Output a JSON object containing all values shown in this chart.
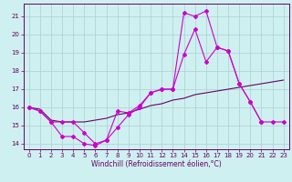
{
  "xlabel": "Windchill (Refroidissement éolien,°C)",
  "background_color": "#cff0f0",
  "grid_color": "#aacfcf",
  "line_color1": "#cc00cc",
  "line_color2": "#660066",
  "xlim": [
    -0.5,
    23.5
  ],
  "ylim": [
    13.7,
    21.7
  ],
  "yticks": [
    14,
    15,
    16,
    17,
    18,
    19,
    20,
    21
  ],
  "xticks": [
    0,
    1,
    2,
    3,
    4,
    5,
    6,
    7,
    8,
    9,
    10,
    11,
    12,
    13,
    14,
    15,
    16,
    17,
    18,
    19,
    20,
    21,
    22,
    23
  ],
  "line1_x": [
    0,
    1,
    2,
    3,
    4,
    5,
    6,
    7,
    8,
    9,
    10,
    11,
    12,
    13,
    14,
    15,
    16,
    17,
    18,
    19,
    20,
    21
  ],
  "line1_y": [
    16.0,
    15.8,
    15.2,
    14.4,
    14.4,
    14.0,
    13.9,
    14.2,
    15.8,
    15.7,
    16.1,
    16.8,
    17.0,
    17.0,
    18.9,
    20.3,
    18.5,
    19.3,
    19.1,
    17.3,
    16.3,
    15.2
  ],
  "line2_x": [
    0,
    1,
    2,
    3,
    4,
    5,
    6,
    7,
    8,
    9,
    10,
    11,
    12,
    13,
    14,
    15,
    16,
    17,
    18,
    19,
    20,
    21,
    22,
    23
  ],
  "line2_y": [
    16.0,
    15.9,
    15.3,
    15.2,
    15.2,
    15.2,
    15.3,
    15.4,
    15.6,
    15.7,
    15.9,
    16.1,
    16.2,
    16.4,
    16.5,
    16.7,
    16.8,
    16.9,
    17.0,
    17.1,
    17.2,
    17.3,
    17.4,
    17.5
  ],
  "line3_x": [
    0,
    1,
    2,
    3,
    4,
    5,
    6,
    7,
    8,
    9,
    10,
    11,
    12,
    13,
    14,
    15,
    16,
    17,
    18,
    19,
    20,
    21,
    22,
    23
  ],
  "line3_y": [
    16.0,
    15.8,
    15.2,
    15.2,
    15.2,
    14.6,
    14.0,
    14.2,
    14.9,
    15.6,
    16.0,
    16.8,
    17.0,
    17.0,
    21.2,
    21.0,
    21.3,
    19.3,
    19.1,
    17.3,
    16.3,
    15.2,
    15.2,
    15.2
  ]
}
